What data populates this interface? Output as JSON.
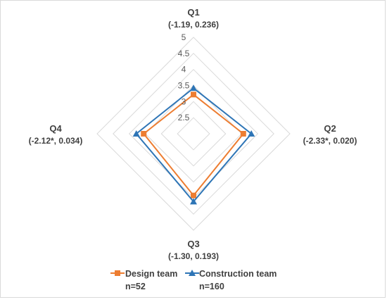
{
  "chart_data": {
    "type": "radar",
    "categories": [
      "Q1",
      "Q2",
      "Q3",
      "Q4"
    ],
    "category_stats": [
      "(-1.19, 0.236)",
      "(-2.33*, 0.020)",
      "(-1.30, 0.193)",
      "(-2.12*, 0.034)"
    ],
    "rlim": [
      2,
      5
    ],
    "ticks": [
      2.5,
      3,
      3.5,
      4,
      4.5,
      5
    ],
    "tick_labels": [
      "2.5",
      "3",
      "3.5",
      "4",
      "4.5",
      "5"
    ],
    "grid": true,
    "legend_position": "bottom",
    "series": [
      {
        "name": "Design team",
        "n_label": "n=52",
        "marker": "square",
        "color": "#ED7D31",
        "values": [
          3.22,
          3.55,
          3.92,
          3.55
        ]
      },
      {
        "name": "Construction team",
        "n_label": "n=160",
        "marker": "triangle",
        "color": "#2E75B6",
        "values": [
          3.42,
          3.8,
          4.11,
          3.78
        ]
      }
    ]
  }
}
